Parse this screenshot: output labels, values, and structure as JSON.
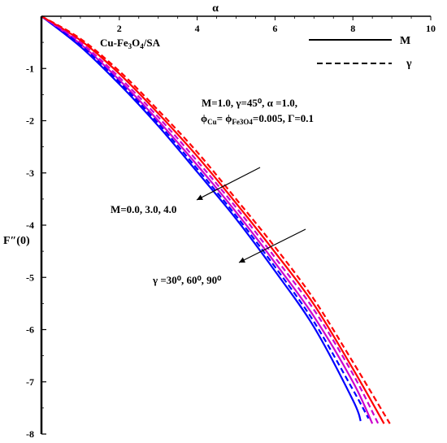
{
  "chart_data": {
    "type": "line",
    "xlabel": "α",
    "ylabel": "F″(0)",
    "xlim": [
      0,
      10
    ],
    "ylim": [
      -8,
      0
    ],
    "x_ticks": [
      "2",
      "4",
      "6",
      "8",
      "10"
    ],
    "y_ticks": [
      "-1",
      "-2",
      "-3",
      "-4",
      "-5",
      "-6",
      "-7",
      "-8"
    ],
    "legend": {
      "position": "top-right",
      "items": [
        {
          "label": "M",
          "style": "solid"
        },
        {
          "label": "γ",
          "style": "dashed"
        }
      ]
    },
    "annotations": {
      "fluid": [
        "Cu-Fe",
        "3",
        "O",
        "4",
        "/SA"
      ],
      "params_line1": "M=1.0, γ=45⁰, α =1.0,",
      "params_line2": [
        "ϕ",
        "Cu",
        "= ϕ",
        "Fe3O4",
        "=0.005, Γ=0.1"
      ],
      "m_label": "M=0.0, 3.0, 4.0",
      "gamma_label": "γ =30⁰, 60⁰, 90⁰"
    },
    "series": [
      {
        "style": "solid",
        "color": "#0000ff",
        "x": [
          0,
          1,
          2,
          3,
          4,
          5,
          6,
          7,
          8,
          8.2
        ],
        "y": [
          0,
          -0.58,
          -1.3,
          -2.1,
          -2.98,
          -3.88,
          -4.88,
          -5.95,
          -7.35,
          -7.75
        ]
      },
      {
        "style": "solid",
        "color": "#cc00cc",
        "x": [
          0,
          1,
          2,
          3,
          4,
          5,
          6,
          7,
          8,
          8.5
        ],
        "y": [
          0,
          -0.53,
          -1.22,
          -2.0,
          -2.85,
          -3.75,
          -4.72,
          -5.75,
          -7.0,
          -7.8
        ]
      },
      {
        "style": "solid",
        "color": "#ff0000",
        "x": [
          0,
          1,
          2,
          3,
          4,
          5,
          6,
          7,
          8,
          8.8
        ],
        "y": [
          0,
          -0.46,
          -1.1,
          -1.86,
          -2.68,
          -3.58,
          -4.52,
          -5.52,
          -6.75,
          -7.8
        ]
      },
      {
        "style": "dashed",
        "color": "#0000ff",
        "x": [
          0,
          1,
          2,
          3,
          4,
          5,
          6,
          7,
          8,
          8.4
        ],
        "y": [
          0,
          -0.55,
          -1.26,
          -2.05,
          -2.92,
          -3.82,
          -4.8,
          -5.85,
          -7.15,
          -7.7
        ]
      },
      {
        "style": "dashed",
        "color": "#cc00cc",
        "x": [
          0,
          1,
          2,
          3,
          4,
          5,
          6,
          7,
          8,
          8.65
        ],
        "y": [
          0,
          -0.5,
          -1.17,
          -1.93,
          -2.77,
          -3.66,
          -4.62,
          -5.62,
          -6.85,
          -7.8
        ]
      },
      {
        "style": "dashed",
        "color": "#ff0000",
        "x": [
          0,
          1,
          2,
          3,
          4,
          5,
          6,
          7,
          8,
          8.95
        ],
        "y": [
          0,
          -0.43,
          -1.05,
          -1.8,
          -2.6,
          -3.5,
          -4.42,
          -5.42,
          -6.62,
          -7.8
        ]
      }
    ]
  }
}
